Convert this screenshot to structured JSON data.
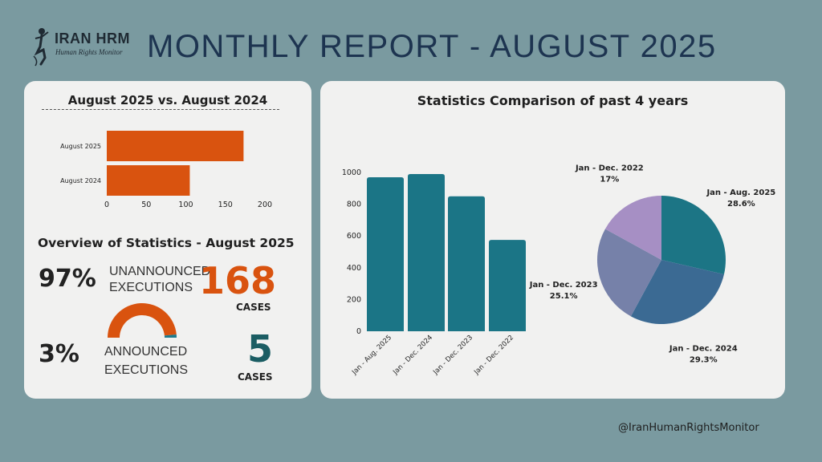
{
  "header": {
    "logo_name": "IRAN HRM",
    "logo_subtitle": "Human Rights Monitor",
    "title": "MONTHLY REPORT - AUGUST 2025"
  },
  "comparison": {
    "title": "August 2025 vs. August 2024"
  },
  "overview": {
    "title": "Overview of Statistics - August 2025",
    "unannounced_pct": "97%",
    "unannounced_label_1": "UNANNOUNCED",
    "unannounced_label_2": "EXECUTIONS",
    "unannounced_count": "168",
    "unannounced_cases": "CASES",
    "announced_pct": "3%",
    "announced_label_1": "ANNOUNCED",
    "announced_label_2": "EXECUTIONS",
    "announced_count": "5",
    "announced_cases": "CASES"
  },
  "stats": {
    "title": "Statistics Comparison of past 4 years"
  },
  "footer": {
    "handle": "@IranHumanRightsMonitor"
  },
  "colors": {
    "orange": "#d9530f",
    "teal": "#1f7a8c",
    "dark_teal": "#1b5d63",
    "navy": "#1d3450"
  },
  "chart_data": [
    {
      "type": "bar",
      "orientation": "horizontal",
      "categories": [
        "August 2025",
        "August 2024"
      ],
      "values": [
        173,
        105
      ],
      "xlim": [
        0,
        200
      ],
      "xticks": [
        0,
        50,
        100,
        150,
        200
      ],
      "color": "#d9530f",
      "grid": false
    },
    {
      "type": "pie",
      "style": "half-donut",
      "series": [
        {
          "name": "Unannounced executions",
          "value": 97,
          "color": "#d9530f"
        },
        {
          "name": "Announced executions",
          "value": 3,
          "color": "#1f7a8c"
        }
      ]
    },
    {
      "type": "bar",
      "categories": [
        "Jan - Aug. 2025",
        "Jan - Dec. 2024",
        "Jan - Dec. 2023",
        "Jan - Dec. 2022"
      ],
      "values": [
        970,
        990,
        850,
        575
      ],
      "ylim": [
        0,
        1000
      ],
      "yticks": [
        0,
        200,
        400,
        600,
        800,
        1000
      ],
      "color": "#1b7586",
      "grid": false
    },
    {
      "type": "pie",
      "slices": [
        {
          "label": "Jan - Aug. 2025",
          "pct_label": "28.6%",
          "value": 28.6,
          "color": "#1c7585"
        },
        {
          "label": "Jan - Dec. 2024",
          "pct_label": "29.3%",
          "value": 29.3,
          "color": "#3b6a93"
        },
        {
          "label": "Jan - Dec. 2023",
          "pct_label": "25.1%",
          "value": 25.1,
          "color": "#7681a9"
        },
        {
          "label": "Jan - Dec. 2022",
          "pct_label": "17%",
          "value": 17,
          "color": "#a68fc4"
        }
      ]
    }
  ]
}
